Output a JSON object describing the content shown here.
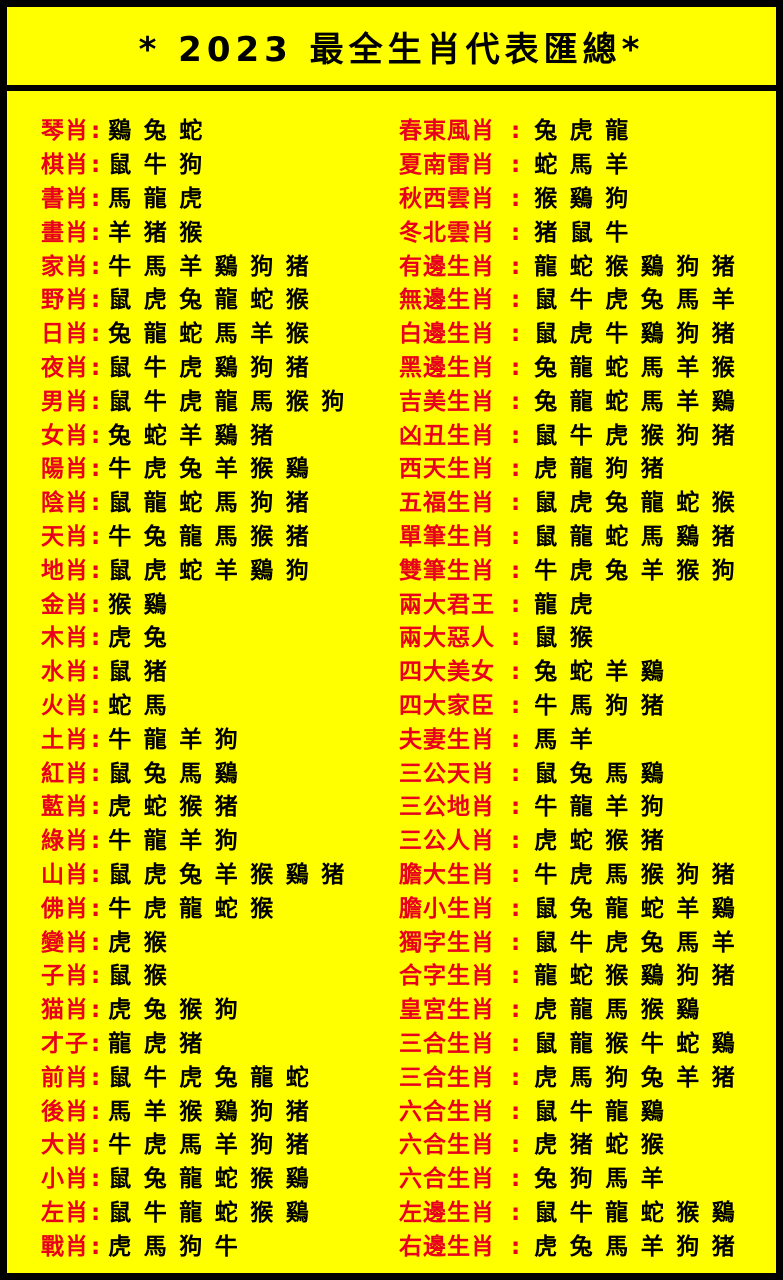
{
  "title": "* 2023 最全生肖代表匯總*",
  "colors": {
    "background": "#FFFF00",
    "label": "#E8001C",
    "text": "#000000",
    "border": "#000000"
  },
  "left_column": [
    {
      "label": "琴肖",
      "animals": "鷄兔蛇"
    },
    {
      "label": "棋肖",
      "animals": "鼠牛狗"
    },
    {
      "label": "書肖",
      "animals": "馬龍虎"
    },
    {
      "label": "畫肖",
      "animals": "羊猪猴"
    },
    {
      "label": "家肖",
      "animals": "牛馬羊鷄狗猪"
    },
    {
      "label": "野肖",
      "animals": "鼠虎兔龍蛇猴"
    },
    {
      "label": "日肖",
      "animals": "兔龍蛇馬羊猴"
    },
    {
      "label": "夜肖",
      "animals": "鼠牛虎鷄狗猪"
    },
    {
      "label": "男肖",
      "animals": "鼠牛虎龍馬猴狗"
    },
    {
      "label": "女肖",
      "animals": "兔蛇羊鷄猪"
    },
    {
      "label": "陽肖",
      "animals": "牛虎兔羊猴鷄"
    },
    {
      "label": "陰肖",
      "animals": "鼠龍蛇馬狗猪"
    },
    {
      "label": "天肖",
      "animals": "牛兔龍馬猴猪"
    },
    {
      "label": "地肖",
      "animals": "鼠虎蛇羊鷄狗"
    },
    {
      "label": "金肖",
      "animals": "猴鷄"
    },
    {
      "label": "木肖",
      "animals": "虎兔"
    },
    {
      "label": "水肖",
      "animals": "鼠猪"
    },
    {
      "label": "火肖",
      "animals": "蛇馬"
    },
    {
      "label": "土肖",
      "animals": "牛龍羊狗"
    },
    {
      "label": "紅肖",
      "animals": "鼠兔馬鷄"
    },
    {
      "label": "藍肖",
      "animals": "虎蛇猴猪"
    },
    {
      "label": "綠肖",
      "animals": "牛龍羊狗"
    },
    {
      "label": "山肖",
      "animals": "鼠虎兔羊猴鷄猪"
    },
    {
      "label": "佛肖",
      "animals": "牛虎龍蛇猴"
    },
    {
      "label": "變肖",
      "animals": "虎猴"
    },
    {
      "label": "子肖",
      "animals": "鼠猴"
    },
    {
      "label": "猫肖",
      "animals": "虎兔猴狗"
    },
    {
      "label": "才子",
      "animals": "龍虎猪"
    },
    {
      "label": "前肖",
      "animals": "鼠牛虎兔龍蛇"
    },
    {
      "label": "後肖",
      "animals": "馬羊猴鷄狗猪"
    },
    {
      "label": "大肖",
      "animals": "牛虎馬羊狗猪"
    },
    {
      "label": "小肖",
      "animals": "鼠兔龍蛇猴鷄"
    },
    {
      "label": "左肖",
      "animals": "鼠牛龍蛇猴鷄"
    },
    {
      "label": "戰肖",
      "animals": "虎馬狗牛"
    }
  ],
  "right_column": [
    {
      "label": "春東風肖",
      "animals": "兔虎龍"
    },
    {
      "label": "夏南雷肖",
      "animals": "蛇馬羊"
    },
    {
      "label": "秋西雲肖",
      "animals": "猴鷄狗"
    },
    {
      "label": "冬北雲肖",
      "animals": "猪鼠牛"
    },
    {
      "label": "有邊生肖",
      "animals": "龍蛇猴鷄狗猪"
    },
    {
      "label": "無邊生肖",
      "animals": "鼠牛虎兔馬羊"
    },
    {
      "label": "白邊生肖",
      "animals": "鼠虎牛鷄狗猪"
    },
    {
      "label": "黑邊生肖",
      "animals": "兔龍蛇馬羊猴"
    },
    {
      "label": "吉美生肖",
      "animals": "兔龍蛇馬羊鷄"
    },
    {
      "label": "凶丑生肖",
      "animals": "鼠牛虎猴狗猪"
    },
    {
      "label": "西天生肖",
      "animals": "虎龍狗猪"
    },
    {
      "label": "五福生肖",
      "animals": "鼠虎兔龍蛇猴"
    },
    {
      "label": "單筆生肖",
      "animals": "鼠龍蛇馬鷄猪"
    },
    {
      "label": "雙筆生肖",
      "animals": "牛虎兔羊猴狗"
    },
    {
      "label": "兩大君王",
      "animals": "龍虎"
    },
    {
      "label": "兩大惡人",
      "animals": "鼠猴"
    },
    {
      "label": "四大美女",
      "animals": "兔蛇羊鷄"
    },
    {
      "label": "四大家臣",
      "animals": "牛馬狗猪"
    },
    {
      "label": "夫妻生肖",
      "animals": "馬羊"
    },
    {
      "label": "三公天肖",
      "animals": "鼠兔馬鷄"
    },
    {
      "label": "三公地肖",
      "animals": "牛龍羊狗"
    },
    {
      "label": "三公人肖",
      "animals": "虎蛇猴猪"
    },
    {
      "label": "膽大生肖",
      "animals": "牛虎馬猴狗猪"
    },
    {
      "label": "膽小生肖",
      "animals": "鼠兔龍蛇羊鷄"
    },
    {
      "label": "獨字生肖",
      "animals": "鼠牛虎兔馬羊"
    },
    {
      "label": "合字生肖",
      "animals": "龍蛇猴鷄狗猪"
    },
    {
      "label": "皇宮生肖",
      "animals": "虎龍馬猴鷄"
    },
    {
      "label": "三合生肖",
      "animals": "鼠龍猴牛蛇鷄"
    },
    {
      "label": "三合生肖",
      "animals": "虎馬狗兔羊猪"
    },
    {
      "label": "六合生肖",
      "animals": "鼠牛龍鷄"
    },
    {
      "label": "六合生肖",
      "animals": "虎猪蛇猴"
    },
    {
      "label": "六合生肖",
      "animals": "兔狗馬羊"
    },
    {
      "label": "左邊生肖",
      "animals": "鼠牛龍蛇猴鷄"
    },
    {
      "label": "右邊生肖",
      "animals": "虎兔馬羊狗猪"
    }
  ]
}
